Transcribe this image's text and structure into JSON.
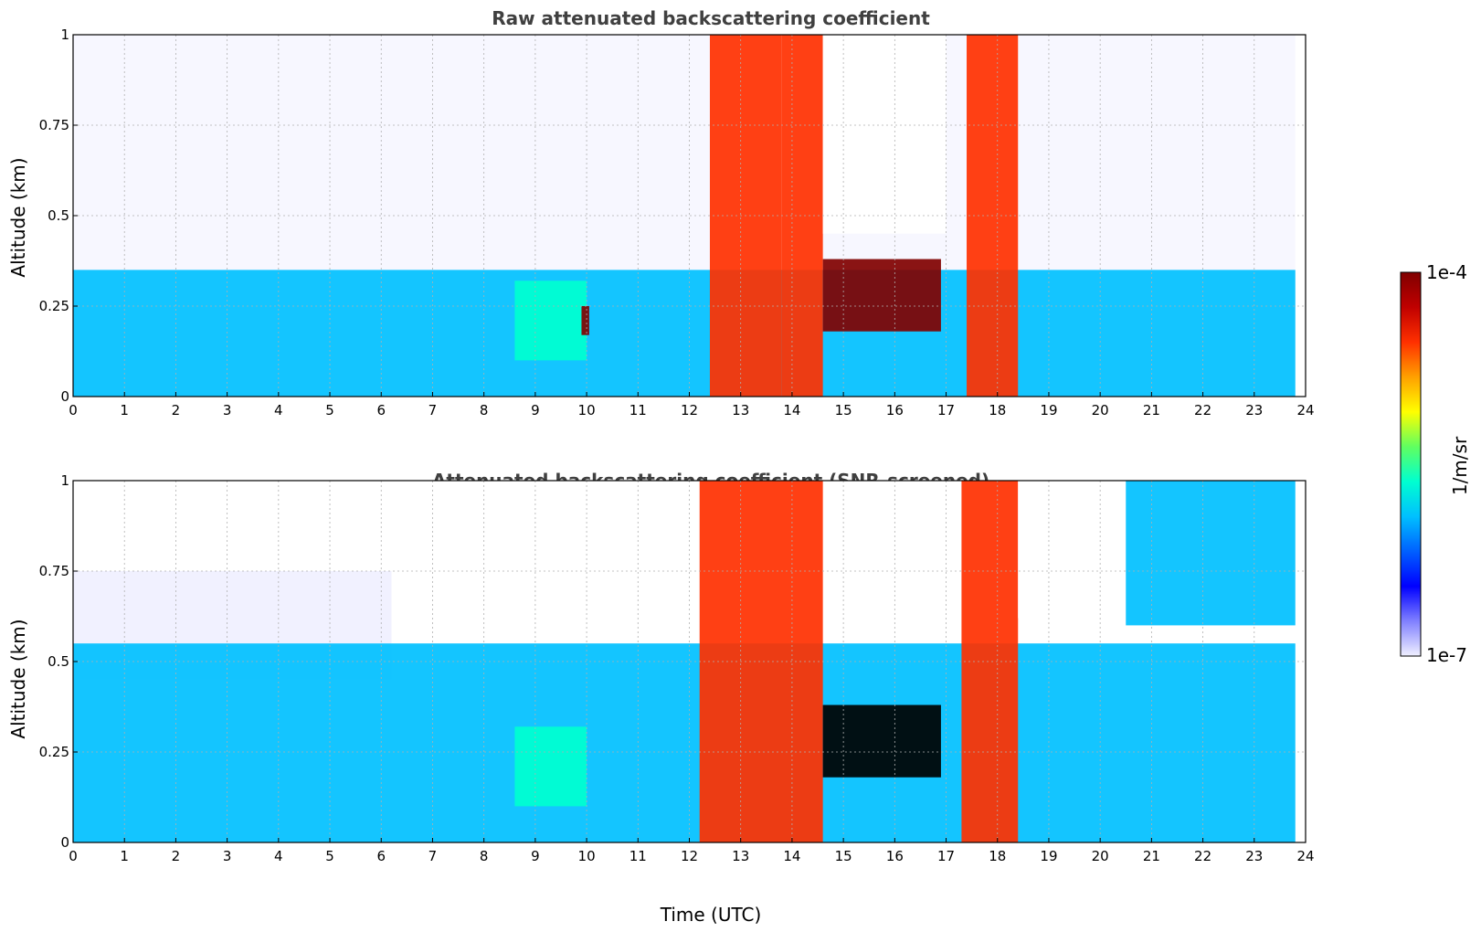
{
  "chart_data": [
    {
      "type": "heatmap",
      "title": "Raw attenuated backscattering coefficient",
      "xlabel": "",
      "ylabel": "Altitude (km)",
      "xlim": [
        0,
        24
      ],
      "ylim": [
        0,
        1
      ],
      "xticks": [
        "0",
        "1",
        "2",
        "3",
        "4",
        "5",
        "6",
        "7",
        "8",
        "9",
        "10",
        "11",
        "12",
        "13",
        "14",
        "15",
        "16",
        "17",
        "18",
        "19",
        "20",
        "21",
        "22",
        "23",
        "24"
      ],
      "yticks": [
        "0",
        "0.25",
        "0.5",
        "0.75",
        "1"
      ],
      "grid": true,
      "features": [
        {
          "label": "noisy background above boundary layer",
          "x": [
            0,
            23.8
          ],
          "y": [
            0.3,
            1.0
          ],
          "level": "1e-7 to 1e-6, speckled"
        },
        {
          "label": "boundary layer aerosol",
          "x": [
            0,
            23.8
          ],
          "y": [
            0,
            0.35
          ],
          "level": "~1e-6"
        },
        {
          "label": "aerosol plume",
          "x": [
            8.6,
            10.0
          ],
          "y": [
            0.1,
            0.32
          ],
          "level": "~3e-6"
        },
        {
          "label": "strong feature",
          "x": [
            9.9,
            10.05
          ],
          "y": [
            0.17,
            0.25
          ],
          "level": "~1e-4"
        },
        {
          "label": "precipitation / cloud column",
          "x": [
            12.4,
            13.8
          ],
          "y": [
            0,
            1.0
          ],
          "level": "1e-5 to 1e-4"
        },
        {
          "label": "precipitation / cloud column",
          "x": [
            13.8,
            14.6
          ],
          "y": [
            0,
            1.0
          ],
          "level": "1e-5 to 1e-4"
        },
        {
          "label": "fully attenuated (no signal)",
          "x": [
            14.6,
            17.0
          ],
          "y": [
            0.45,
            1.0
          ],
          "level": "none"
        },
        {
          "label": "low cloud layer",
          "x": [
            14.6,
            16.9
          ],
          "y": [
            0.18,
            0.38
          ],
          "level": "~1e-4"
        },
        {
          "label": "precipitation / cloud column",
          "x": [
            17.4,
            18.4
          ],
          "y": [
            0,
            1.0
          ],
          "level": "1e-5 to 1e-4"
        }
      ]
    },
    {
      "type": "heatmap",
      "title": "Attenuated backscattering coefficient (SNR-screened)",
      "xlabel": "Time (UTC)",
      "ylabel": "Altitude (km)",
      "xlim": [
        0,
        24
      ],
      "ylim": [
        0,
        1
      ],
      "xticks": [
        "0",
        "1",
        "2",
        "3",
        "4",
        "5",
        "6",
        "7",
        "8",
        "9",
        "10",
        "11",
        "12",
        "13",
        "14",
        "15",
        "16",
        "17",
        "18",
        "19",
        "20",
        "21",
        "22",
        "23",
        "24"
      ],
      "yticks": [
        "0",
        "0.25",
        "0.5",
        "0.75",
        "1"
      ],
      "grid": true,
      "features": [
        {
          "label": "screened (no data)",
          "x": [
            0,
            11.8
          ],
          "y": [
            0.62,
            1.0
          ],
          "level": "none"
        },
        {
          "label": "faint residual layer",
          "x": [
            0,
            6.2
          ],
          "y": [
            0.45,
            0.75
          ],
          "level": "~1e-7"
        },
        {
          "label": "boundary layer aerosol",
          "x": [
            0,
            23.8
          ],
          "y": [
            0,
            0.55
          ],
          "level": "~1e-6"
        },
        {
          "label": "aerosol plume",
          "x": [
            8.6,
            10.0
          ],
          "y": [
            0.1,
            0.32
          ],
          "level": "~3e-6"
        },
        {
          "label": "precipitation / cloud columns",
          "x": [
            12.2,
            14.6
          ],
          "y": [
            0,
            1.0
          ],
          "level": "1e-5 to 1e-4"
        },
        {
          "label": "low cloud layer (saturated)",
          "x": [
            14.6,
            16.9
          ],
          "y": [
            0.18,
            0.38
          ],
          "level": ">1e-4"
        },
        {
          "label": "precipitation / cloud column",
          "x": [
            17.3,
            18.4
          ],
          "y": [
            0,
            1.0
          ],
          "level": "1e-5 to 1e-4"
        },
        {
          "label": "screened (no data)",
          "x": [
            18.4,
            20.5
          ],
          "y": [
            0.62,
            1.0
          ],
          "level": "none"
        },
        {
          "label": "upper aerosol",
          "x": [
            20.5,
            23.8
          ],
          "y": [
            0.6,
            1.0
          ],
          "level": "~1e-6"
        }
      ]
    }
  ],
  "colorbar": {
    "label": "1/m/sr",
    "max_label": "1e-4",
    "min_label": "1e-7",
    "stops": [
      "#f0f0ff",
      "#8080ff",
      "#0000ff",
      "#0060ff",
      "#00c0ff",
      "#00ffd0",
      "#60ff60",
      "#ffff00",
      "#ffa000",
      "#ff3000",
      "#c00000",
      "#800000"
    ]
  }
}
